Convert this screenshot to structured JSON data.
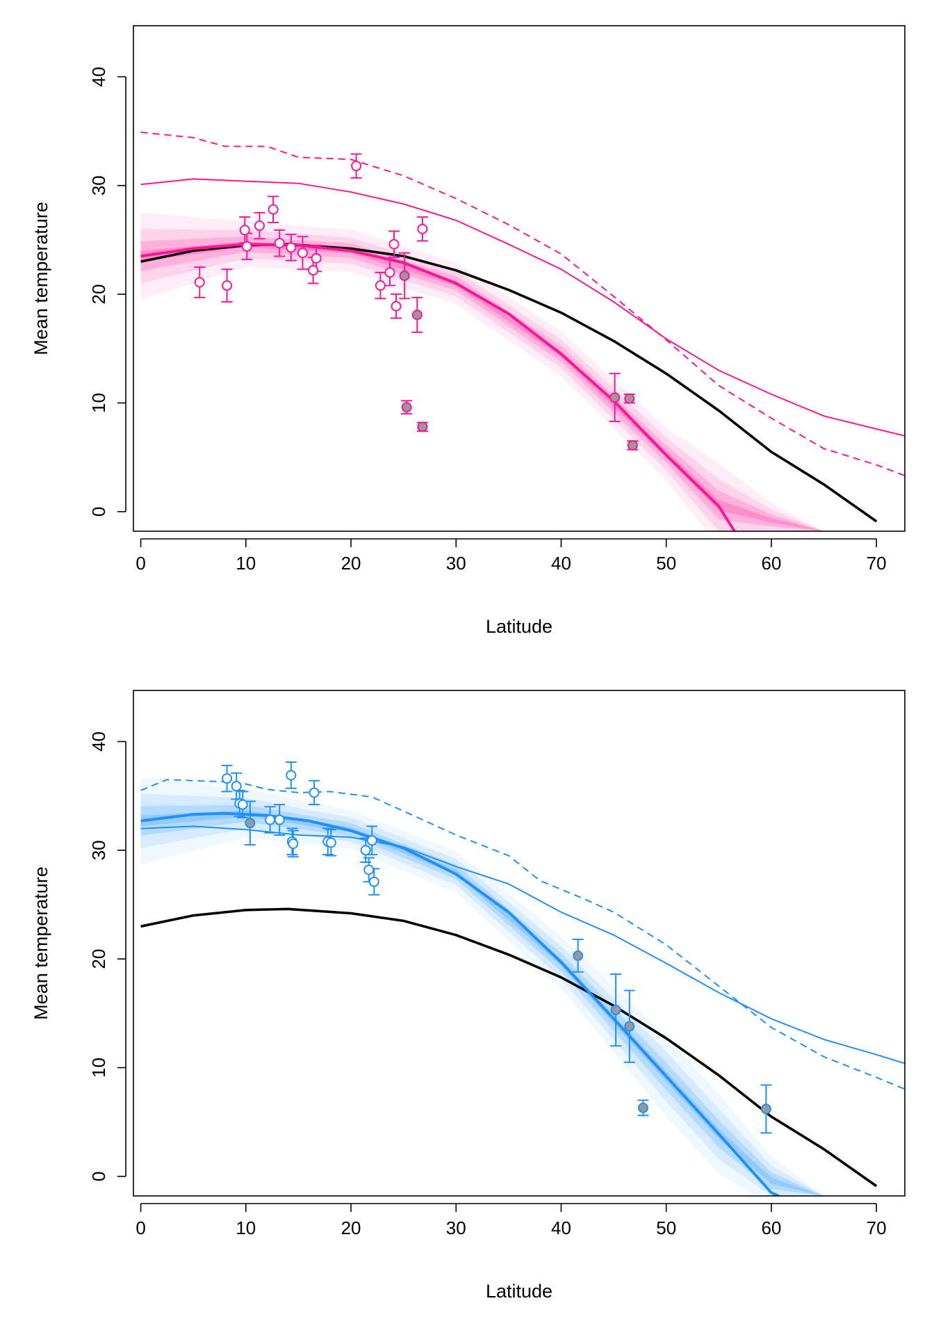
{
  "chart_data": [
    {
      "type": "scatter",
      "title": "",
      "xlabel": "Latitude",
      "ylabel": "Mean temperature",
      "xlim": [
        -0.7,
        72.7
      ],
      "ylim": [
        -1.8,
        44.7
      ],
      "xticks": [
        0,
        10,
        20,
        30,
        40,
        50,
        60,
        70
      ],
      "yticks": [
        0,
        10,
        20,
        30,
        40
      ],
      "grid": false,
      "colors": {
        "series": "#ff1493",
        "reference": "#000000",
        "filled_point": "#999999"
      },
      "reference_curve": {
        "name": "",
        "x": [
          0,
          5,
          10,
          14,
          20,
          25,
          30,
          35,
          40,
          45,
          50,
          55,
          60,
          65,
          70
        ],
        "y": [
          23.0,
          24.0,
          24.5,
          24.6,
          24.2,
          23.5,
          22.2,
          20.4,
          18.3,
          15.7,
          12.7,
          9.3,
          5.5,
          2.5,
          -0.9
        ]
      },
      "fit_curve": {
        "name": "",
        "x": [
          0,
          5,
          10,
          15,
          20,
          25,
          30,
          35,
          40,
          45,
          50,
          55,
          56.5
        ],
        "y": [
          23.5,
          24.2,
          24.6,
          24.5,
          24.0,
          22.9,
          21.0,
          18.2,
          14.5,
          10.2,
          5.2,
          0.5,
          -1.8
        ]
      },
      "uncertainty_band": {
        "x": [
          0,
          10,
          20,
          30,
          40,
          50,
          55,
          60,
          65
        ],
        "lower": [
          21.0,
          23.3,
          22.8,
          19.8,
          13.2,
          3.8,
          -1.8,
          -1.8,
          -1.8
        ],
        "upper": [
          26.0,
          25.9,
          25.2,
          22.2,
          15.8,
          6.8,
          3.0,
          0.2,
          -1.8
        ]
      },
      "solid_line": {
        "name": "",
        "x": [
          0,
          5,
          10,
          15,
          20,
          25,
          30,
          35,
          40,
          45,
          50,
          55,
          60,
          65,
          70,
          73
        ],
        "y": [
          30.1,
          30.6,
          30.4,
          30.2,
          29.4,
          28.3,
          26.8,
          24.6,
          22.3,
          19.3,
          15.9,
          13.0,
          10.8,
          8.8,
          7.6,
          6.9
        ]
      },
      "dashed_line": {
        "name": "",
        "x": [
          0,
          5,
          8,
          12,
          15,
          20,
          25,
          30,
          35,
          40,
          45,
          50,
          55,
          60,
          65,
          70,
          73
        ],
        "y": [
          34.9,
          34.4,
          33.6,
          33.6,
          32.6,
          32.4,
          30.9,
          28.8,
          26.4,
          23.7,
          19.8,
          15.8,
          11.6,
          8.6,
          5.8,
          4.3,
          3.2
        ]
      },
      "points": [
        {
          "x": 5.6,
          "y": 21.1,
          "err": 1.4,
          "filled": false
        },
        {
          "x": 8.2,
          "y": 20.8,
          "err": 1.5,
          "filled": false
        },
        {
          "x": 9.9,
          "y": 25.9,
          "err": 1.2,
          "filled": false
        },
        {
          "x": 10.1,
          "y": 24.4,
          "err": 1.2,
          "filled": false
        },
        {
          "x": 11.3,
          "y": 26.3,
          "err": 1.2,
          "filled": false
        },
        {
          "x": 12.6,
          "y": 27.8,
          "err": 1.2,
          "filled": false
        },
        {
          "x": 13.2,
          "y": 24.7,
          "err": 1.2,
          "filled": false
        },
        {
          "x": 14.3,
          "y": 24.3,
          "err": 1.2,
          "filled": false
        },
        {
          "x": 15.4,
          "y": 23.8,
          "err": 1.5,
          "filled": false
        },
        {
          "x": 16.4,
          "y": 22.2,
          "err": 1.2,
          "filled": false
        },
        {
          "x": 16.7,
          "y": 23.3,
          "err": 1.2,
          "filled": false
        },
        {
          "x": 20.5,
          "y": 31.8,
          "err": 1.1,
          "filled": false
        },
        {
          "x": 22.8,
          "y": 20.8,
          "err": 1.2,
          "filled": false
        },
        {
          "x": 23.7,
          "y": 22.0,
          "err": 1.2,
          "filled": false
        },
        {
          "x": 24.1,
          "y": 24.6,
          "err": 1.2,
          "filled": false
        },
        {
          "x": 24.3,
          "y": 18.9,
          "err": 1.1,
          "filled": false
        },
        {
          "x": 25.1,
          "y": 21.7,
          "err": 2.1,
          "filled": true
        },
        {
          "x": 25.3,
          "y": 9.6,
          "err": 0.6,
          "filled": true
        },
        {
          "x": 26.3,
          "y": 18.1,
          "err": 1.6,
          "filled": true
        },
        {
          "x": 26.8,
          "y": 7.8,
          "err": 0.4,
          "filled": true
        },
        {
          "x": 26.8,
          "y": 26.0,
          "err": 1.1,
          "filled": false
        },
        {
          "x": 45.1,
          "y": 10.5,
          "err": 2.2,
          "filled": true
        },
        {
          "x": 46.5,
          "y": 10.4,
          "err": 0.4,
          "filled": true
        },
        {
          "x": 46.8,
          "y": 6.1,
          "err": 0.4,
          "filled": true
        }
      ]
    },
    {
      "type": "scatter",
      "title": "",
      "xlabel": "Latitude",
      "ylabel": "Mean temperature",
      "xlim": [
        -0.7,
        72.7
      ],
      "ylim": [
        -1.8,
        44.7
      ],
      "xticks": [
        0,
        10,
        20,
        30,
        40,
        50,
        60,
        70
      ],
      "yticks": [
        0,
        10,
        20,
        30,
        40
      ],
      "grid": false,
      "colors": {
        "series": "#1e90ff",
        "reference": "#000000",
        "filled_point": "#999999"
      },
      "reference_curve": {
        "name": "",
        "x": [
          0,
          5,
          10,
          14,
          20,
          25,
          30,
          35,
          40,
          45,
          50,
          55,
          60,
          65,
          70
        ],
        "y": [
          23.0,
          24.0,
          24.5,
          24.6,
          24.2,
          23.5,
          22.2,
          20.4,
          18.3,
          15.7,
          12.7,
          9.3,
          5.5,
          2.5,
          -0.9
        ]
      },
      "fit_curve": {
        "name": "",
        "x": [
          0,
          5,
          8,
          12,
          16,
          20,
          25,
          30,
          35,
          40,
          45,
          50,
          55,
          60,
          60.7
        ],
        "y": [
          32.7,
          33.3,
          33.4,
          33.2,
          32.7,
          31.8,
          30.2,
          27.8,
          24.3,
          19.7,
          14.5,
          9.2,
          3.9,
          -1.5,
          -1.8
        ]
      },
      "uncertainty_band": {
        "x": [
          0,
          10,
          20,
          30,
          40,
          50,
          55,
          60,
          65
        ],
        "lower": [
          30.2,
          32.0,
          30.8,
          26.8,
          18.2,
          6.9,
          1.6,
          -1.8,
          -1.8
        ],
        "upper": [
          35.2,
          34.8,
          33.0,
          29.2,
          21.2,
          11.5,
          6.2,
          1.0,
          -1.8
        ]
      },
      "solid_line": {
        "name": "",
        "x": [
          0,
          5,
          10,
          15,
          20,
          25,
          30,
          35,
          40,
          45,
          50,
          55,
          60,
          65,
          70,
          73
        ],
        "y": [
          32.0,
          32.2,
          31.9,
          31.4,
          31.2,
          30.3,
          28.5,
          26.9,
          24.3,
          22.2,
          19.6,
          16.9,
          14.5,
          12.6,
          11.2,
          10.3
        ]
      },
      "dashed_line": {
        "name": "",
        "x": [
          0,
          2.5,
          5,
          8,
          10,
          12,
          15,
          18,
          22,
          25,
          30,
          35,
          38,
          42,
          45,
          50,
          55,
          60,
          65,
          70,
          73
        ],
        "y": [
          35.5,
          36.5,
          36.4,
          36.3,
          36.1,
          35.6,
          35.3,
          35.4,
          34.9,
          33.6,
          31.4,
          29.5,
          27.2,
          25.6,
          24.3,
          21.3,
          17.5,
          13.7,
          11.0,
          9.1,
          7.9
        ]
      },
      "points": [
        {
          "x": 8.2,
          "y": 36.6,
          "err": 1.2,
          "filled": false
        },
        {
          "x": 9.1,
          "y": 35.9,
          "err": 1.2,
          "filled": false
        },
        {
          "x": 9.4,
          "y": 34.3,
          "err": 1.2,
          "filled": false
        },
        {
          "x": 9.7,
          "y": 34.2,
          "err": 1.2,
          "filled": false
        },
        {
          "x": 10.4,
          "y": 32.5,
          "err": 2.0,
          "filled": true
        },
        {
          "x": 12.3,
          "y": 32.8,
          "err": 1.2,
          "filled": false
        },
        {
          "x": 13.2,
          "y": 32.8,
          "err": 1.4,
          "filled": false
        },
        {
          "x": 14.3,
          "y": 36.9,
          "err": 1.2,
          "filled": false
        },
        {
          "x": 14.4,
          "y": 30.8,
          "err": 1.2,
          "filled": false
        },
        {
          "x": 14.5,
          "y": 30.6,
          "err": 1.2,
          "filled": false
        },
        {
          "x": 16.5,
          "y": 35.3,
          "err": 1.1,
          "filled": false
        },
        {
          "x": 17.8,
          "y": 30.8,
          "err": 1.2,
          "filled": false
        },
        {
          "x": 18.1,
          "y": 30.7,
          "err": 1.2,
          "filled": false
        },
        {
          "x": 21.4,
          "y": 30.0,
          "err": 1.1,
          "filled": false
        },
        {
          "x": 21.7,
          "y": 28.2,
          "err": 1.1,
          "filled": false
        },
        {
          "x": 22.0,
          "y": 30.9,
          "err": 1.3,
          "filled": false
        },
        {
          "x": 22.2,
          "y": 27.1,
          "err": 1.2,
          "filled": false
        },
        {
          "x": 41.6,
          "y": 20.3,
          "err": 1.5,
          "filled": true
        },
        {
          "x": 45.2,
          "y": 15.3,
          "err": 3.3,
          "filled": true
        },
        {
          "x": 46.5,
          "y": 13.8,
          "err": 3.3,
          "filled": true
        },
        {
          "x": 47.8,
          "y": 6.3,
          "err": 0.7,
          "filled": true
        },
        {
          "x": 59.5,
          "y": 6.2,
          "err": 2.2,
          "filled": true
        }
      ]
    }
  ]
}
